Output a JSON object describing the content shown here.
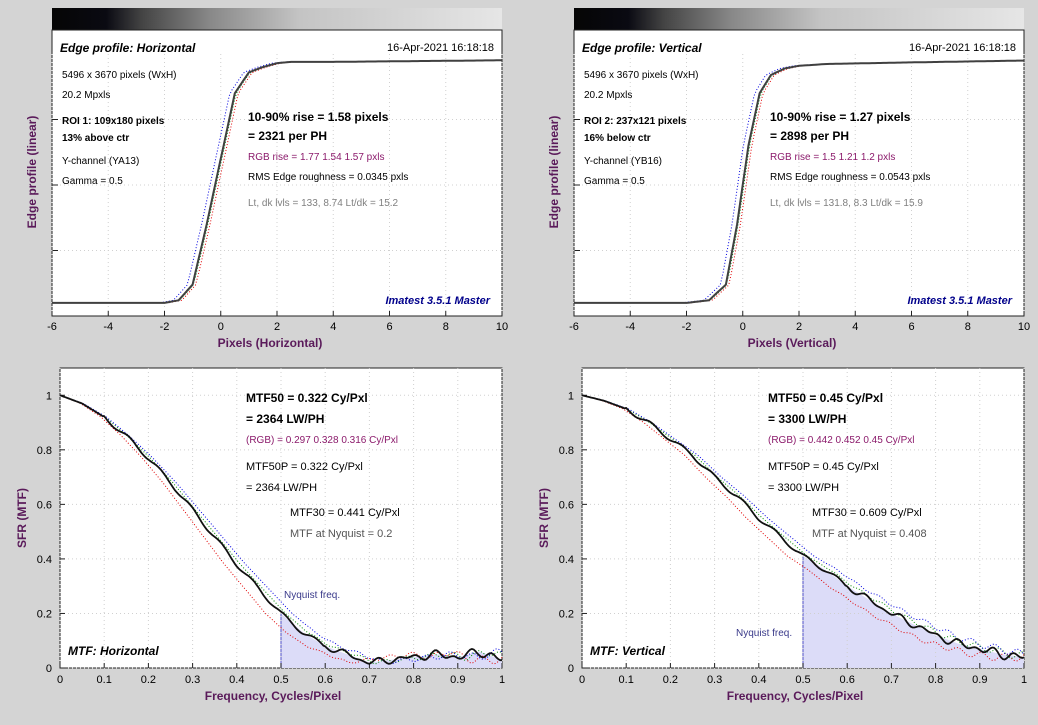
{
  "panels": {
    "edge_h": {
      "title": "Edge profile: Horizontal",
      "timestamp": "16-Apr-2021 16:18:18",
      "info": [
        "5496 x 3670 pixels (WxH)",
        "20.2 Mpxls",
        "ROI 1:  109x180 pixels",
        "13% above ctr",
        "Y-channel  (YA13)",
        "Gamma = 0.5"
      ],
      "rise": "10-90% rise = 1.58 pixels",
      "per_ph": "= 2321 per PH",
      "rgb_rise": "RGB rise = 1.77  1.54  1.57 pxls",
      "rms": "RMS Edge roughness = 0.0345 pxls",
      "levels": "Lt, dk lvls = 133, 8.74   Lt/dk = 15.2",
      "brand": "Imatest 3.5.1 Master",
      "xlabel": "Pixels (Horizontal)",
      "ylabel": "Edge profile (linear)"
    },
    "edge_v": {
      "title": "Edge profile: Vertical",
      "timestamp": "16-Apr-2021 16:18:18",
      "info": [
        "5496 x 3670 pixels (WxH)",
        "20.2 Mpxls",
        "ROI 2:  237x121 pixels",
        "16% below ctr",
        "Y-channel  (YB16)",
        "Gamma = 0.5"
      ],
      "rise": "10-90% rise = 1.27 pixels",
      "per_ph": "= 2898 per PH",
      "rgb_rise": "RGB rise = 1.5  1.21  1.2 pxls",
      "rms": "RMS Edge roughness = 0.0543 pxls",
      "levels": "Lt, dk lvls = 131.8, 8.3   Lt/dk = 15.9",
      "brand": "Imatest 3.5.1 Master",
      "xlabel": "Pixels (Vertical)",
      "ylabel": "Edge profile (linear)"
    },
    "mtf_h": {
      "label": "MTF: Horizontal",
      "mtf50": "MTF50 = 0.322 Cy/Pxl",
      "lwph": "= 2364 LW/PH",
      "rgb": "(RGB) = 0.297  0.328  0.316 Cy/Pxl",
      "mtf50p": "MTF50P = 0.322 Cy/Pxl",
      "lwph_p": "= 2364 LW/PH",
      "mtf30": "MTF30 = 0.441 Cy/Pxl",
      "nyq_val": "MTF at Nyquist = 0.2",
      "nyq_label": "Nyquist freq.",
      "xlabel": "Frequency, Cycles/Pixel",
      "ylabel": "SFR (MTF)"
    },
    "mtf_v": {
      "label": "MTF: Vertical",
      "mtf50": "MTF50 = 0.45 Cy/Pxl",
      "lwph": "= 3300 LW/PH",
      "rgb": "(RGB) = 0.442  0.452  0.45 Cy/Pxl",
      "mtf50p": "MTF50P = 0.45 Cy/Pxl",
      "lwph_p": "= 3300 LW/PH",
      "mtf30": "MTF30 = 0.609 Cy/Pxl",
      "nyq_val": "MTF at Nyquist = 0.408",
      "nyq_label": "Nyquist freq.",
      "xlabel": "Frequency, Cycles/Pixel",
      "ylabel": "SFR (MTF)"
    }
  },
  "colors": {
    "axis_label": "#5a1a5a",
    "rgb_text": "#8b1a6b",
    "brand": "#00008b",
    "nyquist_text": "#3a3a8a",
    "fill": "#dcdcf8",
    "curve": "#404040",
    "red": "#e00000",
    "green": "#008800",
    "blue": "#0000e0",
    "dim_text": "#808080"
  },
  "chart_data": [
    {
      "type": "line",
      "name": "edge_h",
      "xlim": [
        -6,
        10
      ],
      "x_ticks": [
        -6,
        -4,
        -2,
        0,
        2,
        4,
        6,
        8,
        10
      ],
      "series": [
        {
          "values": [
            [
              -6,
              0.05
            ],
            [
              -2,
              0.05
            ],
            [
              -1.5,
              0.06
            ],
            [
              -1,
              0.12
            ],
            [
              -0.5,
              0.35
            ],
            [
              0,
              0.6
            ],
            [
              0.5,
              0.85
            ],
            [
              1,
              0.93
            ],
            [
              1.5,
              0.95
            ],
            [
              2,
              0.965
            ],
            [
              2.5,
              0.97
            ],
            [
              4,
              0.97
            ],
            [
              6,
              0.972
            ],
            [
              8,
              0.974
            ],
            [
              10,
              0.976
            ]
          ]
        }
      ]
    },
    {
      "type": "line",
      "name": "edge_v",
      "xlim": [
        -6,
        10
      ],
      "x_ticks": [
        -6,
        -4,
        -2,
        0,
        2,
        4,
        6,
        8,
        10
      ],
      "series": [
        {
          "values": [
            [
              -6,
              0.05
            ],
            [
              -2,
              0.05
            ],
            [
              -1.2,
              0.06
            ],
            [
              -0.6,
              0.12
            ],
            [
              -0.2,
              0.35
            ],
            [
              0.2,
              0.65
            ],
            [
              0.6,
              0.85
            ],
            [
              1,
              0.92
            ],
            [
              1.5,
              0.945
            ],
            [
              2,
              0.955
            ],
            [
              3,
              0.962
            ],
            [
              6,
              0.968
            ],
            [
              10,
              0.975
            ]
          ]
        }
      ]
    },
    {
      "type": "line",
      "name": "mtf_h",
      "xlim": [
        0,
        1
      ],
      "ylim": [
        0,
        1.1
      ],
      "x_ticks": [
        0,
        0.1,
        0.2,
        0.3,
        0.4,
        0.5,
        0.6,
        0.7,
        0.8,
        0.9,
        1
      ],
      "y_ticks": [
        0,
        0.2,
        0.4,
        0.6,
        0.8,
        1
      ],
      "nyquist": 0.5,
      "series": [
        {
          "values": [
            [
              0,
              1
            ],
            [
              0.05,
              0.97
            ],
            [
              0.1,
              0.92
            ],
            [
              0.15,
              0.85
            ],
            [
              0.2,
              0.77
            ],
            [
              0.25,
              0.68
            ],
            [
              0.3,
              0.58
            ],
            [
              0.35,
              0.48
            ],
            [
              0.4,
              0.38
            ],
            [
              0.45,
              0.29
            ],
            [
              0.5,
              0.2
            ],
            [
              0.55,
              0.13
            ],
            [
              0.6,
              0.08
            ],
            [
              0.65,
              0.05
            ],
            [
              0.7,
              0.02
            ],
            [
              0.75,
              0.03
            ],
            [
              0.8,
              0.04
            ],
            [
              0.85,
              0.05
            ],
            [
              0.9,
              0.04
            ],
            [
              0.95,
              0.06
            ],
            [
              1,
              0.03
            ]
          ]
        }
      ]
    },
    {
      "type": "line",
      "name": "mtf_v",
      "xlim": [
        0,
        1
      ],
      "ylim": [
        0,
        1.1
      ],
      "x_ticks": [
        0,
        0.1,
        0.2,
        0.3,
        0.4,
        0.5,
        0.6,
        0.7,
        0.8,
        0.9,
        1
      ],
      "y_ticks": [
        0,
        0.2,
        0.4,
        0.6,
        0.8,
        1
      ],
      "nyquist": 0.5,
      "series": [
        {
          "values": [
            [
              0,
              1
            ],
            [
              0.05,
              0.98
            ],
            [
              0.1,
              0.95
            ],
            [
              0.15,
              0.9
            ],
            [
              0.2,
              0.84
            ],
            [
              0.25,
              0.78
            ],
            [
              0.3,
              0.7
            ],
            [
              0.35,
              0.63
            ],
            [
              0.4,
              0.55
            ],
            [
              0.45,
              0.48
            ],
            [
              0.5,
              0.41
            ],
            [
              0.55,
              0.36
            ],
            [
              0.6,
              0.3
            ],
            [
              0.65,
              0.25
            ],
            [
              0.7,
              0.2
            ],
            [
              0.75,
              0.16
            ],
            [
              0.8,
              0.12
            ],
            [
              0.85,
              0.09
            ],
            [
              0.9,
              0.07
            ],
            [
              0.95,
              0.05
            ],
            [
              1,
              0.04
            ]
          ]
        }
      ]
    }
  ]
}
